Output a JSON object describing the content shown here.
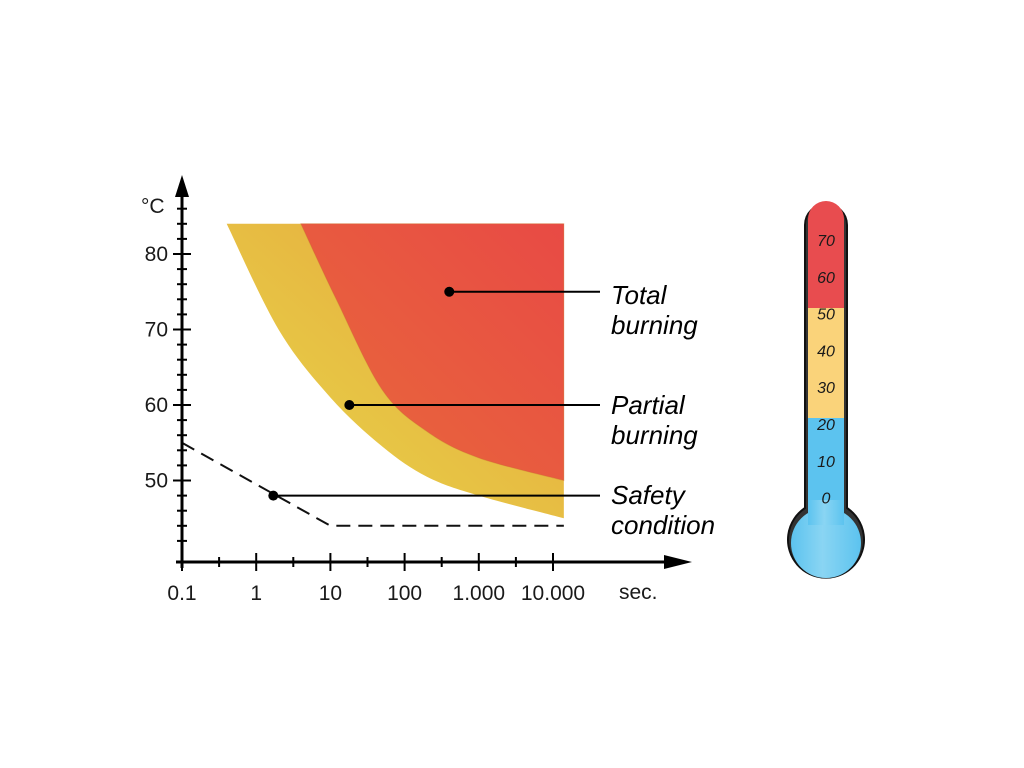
{
  "chart_data": {
    "type": "area",
    "y_unit": "°C",
    "x_unit": "sec.",
    "x_scale": "log",
    "x_tick_labels": [
      "0.1",
      "1",
      "10",
      "100",
      "1.000",
      "10.000"
    ],
    "x_tick_values": [
      0.1,
      1,
      10,
      100,
      1000,
      10000
    ],
    "y_tick_labels": [
      "50",
      "60",
      "70",
      "80"
    ],
    "y_tick_values": [
      50,
      60,
      70,
      80
    ],
    "xlim": [
      0.1,
      50000
    ],
    "ylim": [
      40,
      89
    ],
    "grid": false,
    "regions": [
      {
        "name": "partial",
        "annotation_line1": "Partial",
        "annotation_line2": "burning",
        "color_a": "#e8d84a",
        "color_b": "#e6a33c",
        "boundary": [
          [
            0.4,
            84
          ],
          [
            2,
            70
          ],
          [
            10,
            61
          ],
          [
            50,
            54.5
          ],
          [
            200,
            50.5
          ],
          [
            1000,
            48
          ],
          [
            14000,
            45
          ]
        ],
        "marker": [
          18,
          60
        ]
      },
      {
        "name": "total",
        "annotation_line1": "Total",
        "annotation_line2": "burning",
        "color_a": "#e86a3a",
        "color_b": "#e84a45",
        "boundary": [
          [
            4,
            84
          ],
          [
            12,
            74
          ],
          [
            50,
            62
          ],
          [
            200,
            56.5
          ],
          [
            1000,
            53
          ],
          [
            14000,
            50
          ]
        ],
        "marker": [
          400,
          75
        ]
      }
    ],
    "region_top": 84,
    "region_x_max": 14000,
    "safety_condition": {
      "annotation_line1": "Safety",
      "annotation_line2": "condition",
      "points": [
        [
          0.1,
          55
        ],
        [
          10,
          44
        ],
        [
          14000,
          44
        ]
      ],
      "marker": [
        1.7,
        48
      ]
    }
  },
  "thermometer": {
    "labels": [
      "70",
      "60",
      "50",
      "40",
      "30",
      "20",
      "10",
      "0"
    ],
    "colors": {
      "hot": "#e84c4f",
      "warm": "#fad37a",
      "cool": "#5cc3ef",
      "cool_light": "#8ad5f3"
    }
  }
}
